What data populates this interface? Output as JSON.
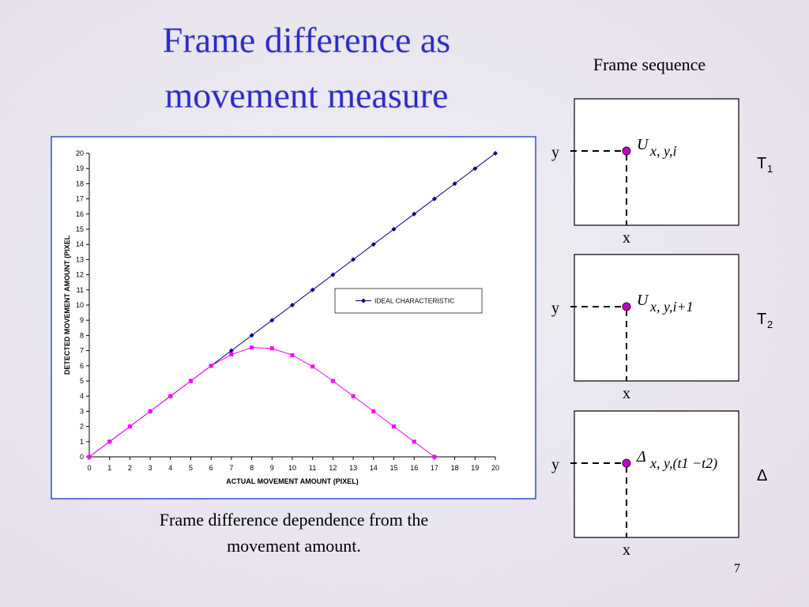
{
  "title_lines": [
    "Frame difference as",
    "movement measure"
  ],
  "caption_lines": [
    "Frame difference dependence from the",
    "movement  amount."
  ],
  "diagram": {
    "heading": "Frame sequence",
    "frames": [
      {
        "y": "y",
        "x": "x",
        "symbol": "U",
        "subscript": "x, y,i",
        "label": "T",
        "label_sub": "1"
      },
      {
        "y": "y",
        "x": "x",
        "symbol": "U",
        "subscript": "x, y,i+1",
        "label": "T",
        "label_sub": "2"
      },
      {
        "y": "y",
        "x": "x",
        "symbol": "Δ",
        "subscript": "x, y,(t1 −t2)",
        "label": "Δ",
        "label_sub": ""
      }
    ]
  },
  "page_number": "7",
  "chart_data": {
    "type": "line",
    "x_label": "ACTUAL MOVEMENT AMOUNT (PIXEL)",
    "y_label": "DETECTED MOVEMENT AMOUNT (PIXEL",
    "x": [
      0,
      1,
      2,
      3,
      4,
      5,
      6,
      7,
      8,
      9,
      10,
      11,
      12,
      13,
      14,
      15,
      16,
      17,
      18,
      19,
      20
    ],
    "series": [
      {
        "name": "IDEAL CHARACTERISTIC",
        "color": "#000080",
        "values": [
          0,
          1,
          2,
          3,
          4,
          5,
          6,
          7,
          8,
          9,
          10,
          11,
          12,
          13,
          14,
          15,
          16,
          17,
          18,
          19,
          20
        ]
      },
      {
        "color": "#ff00ff",
        "values": [
          0,
          1,
          2,
          3,
          4,
          5,
          6,
          6.75,
          7.2,
          7.15,
          6.7,
          5.95,
          5,
          4,
          3,
          2,
          1,
          0,
          null,
          null,
          null
        ]
      }
    ],
    "xlim": [
      0,
      20
    ],
    "ylim": [
      0,
      20
    ],
    "xticks": [
      0,
      1,
      2,
      3,
      4,
      5,
      6,
      7,
      8,
      9,
      10,
      11,
      12,
      13,
      14,
      15,
      16,
      17,
      18,
      19,
      20
    ],
    "yticks": [
      0,
      1,
      2,
      3,
      4,
      5,
      6,
      7,
      8,
      9,
      10,
      11,
      12,
      13,
      14,
      15,
      16,
      17,
      18,
      19,
      20
    ],
    "legend": "center-right"
  }
}
